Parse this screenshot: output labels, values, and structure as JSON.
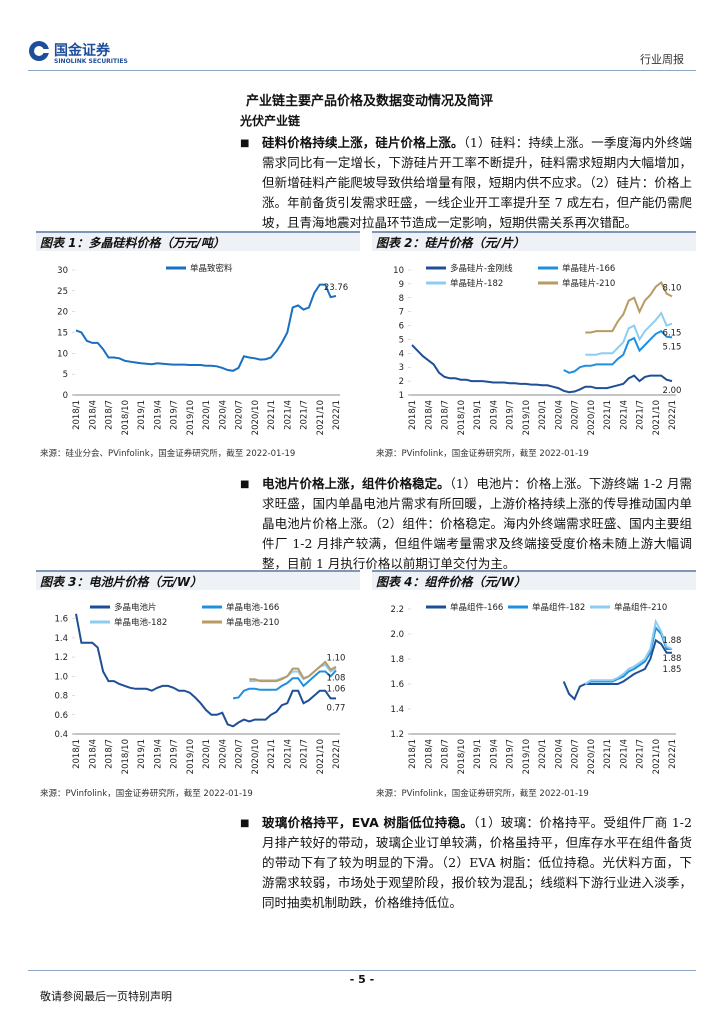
{
  "header": {
    "company": "国金证券",
    "company_en": "SINOLINK SECURITIES",
    "report_type": "行业周报"
  },
  "section_title": "产业链主要产品价格及数据变动情况及简评",
  "subsection": "光伏产业链",
  "paragraphs": [
    {
      "lead": "硅料价格持续上涨，硅片价格上涨。",
      "body": "（1）硅料：持续上涨。一季度海内外终端需求同比有一定增长，下游硅片开工率不断提升，硅料需求短期内大幅增加，但新增硅料产能爬坡导致供给增量有限，短期内供不应求。（2）硅片：价格上涨。年前备货引发需求旺盛，一线企业开工率提升至 7 成左右，但产能仍需爬坡，且青海地震对拉晶环节造成一定影响，短期供需关系再次错配。"
    },
    {
      "lead": "电池片价格上涨，组件价格稳定。",
      "body": "（1）电池片：价格上涨。下游终端 1-2 月需求旺盛，国内单晶电池片需求有所回暖，上游价格持续上涨的传导推动国内单晶电池片价格上涨。（2）组件：价格稳定。海内外终端需求旺盛、国内主要组件厂 1-2 月排产较满，但组件端考量需求及终端接受度价格未随上游大幅调整，目前 1 月执行价格以前期订单交付为主。"
    },
    {
      "lead": "玻璃价格持平，EVA 树脂低位持稳。",
      "body": "（1）玻璃：价格持平。受组件厂商 1-2 月排产较好的带动，玻璃企业订单较满，价格虽持平，但库存水平在组件备货的带动下有了较为明显的下滑。（2）EVA 树脂：低位持稳。光伏料方面，下游需求较弱，市场处于观望阶段，报价较为混乱；线缆料下游行业进入淡季，同时抽卖机制助跌，价格维持低位。"
    }
  ],
  "chart_data": [
    {
      "type": "line",
      "title": "图表 1：多晶硅料价格（万元/吨）",
      "source": "来源：硅业分会、PVinfolink，国金证券研究所，截至 2022-01-19",
      "categories": [
        "2018/1",
        null,
        null,
        "2018/4",
        null,
        null,
        "2018/7",
        null,
        null,
        "2018/10",
        null,
        null,
        "2019/1",
        null,
        null,
        "2019/4",
        null,
        null,
        "2019/7",
        null,
        null,
        "2019/10",
        null,
        null,
        "2020/1",
        null,
        null,
        "2020/4",
        null,
        null,
        "2020/7",
        null,
        null,
        "2020/10",
        null,
        null,
        "2021/1",
        null,
        null,
        "2021/4",
        null,
        null,
        "2021/7",
        null,
        null,
        "2021/10",
        null,
        null,
        "2022/1"
      ],
      "ylim": [
        0,
        30
      ],
      "yticks": [
        0,
        5,
        10,
        15,
        20,
        25,
        30
      ],
      "grid": false,
      "series": [
        {
          "name": "单晶致密料",
          "color": "#1a6fc0",
          "end_label": "23.76",
          "values": [
            15.5,
            15,
            13,
            12.5,
            12.5,
            11,
            9,
            9,
            8.8,
            8.2,
            8,
            7.8,
            7.6,
            7.5,
            7.4,
            7.6,
            7.5,
            7.4,
            7.3,
            7.3,
            7.3,
            7.2,
            7.2,
            7.2,
            7.0,
            7.0,
            6.9,
            6.5,
            6.0,
            5.8,
            6.5,
            9.3,
            9.0,
            8.8,
            8.5,
            8.6,
            9.0,
            10.5,
            12.5,
            15,
            21,
            21.5,
            20.5,
            21,
            24.5,
            26.5,
            26.5,
            23.5,
            23.76
          ]
        }
      ]
    },
    {
      "type": "line",
      "title": "图表 2：硅片价格（元/片）",
      "source": "来源：PVinfolink，国金证券研究所，截至 2022-01-19",
      "categories": [
        "2018/1",
        null,
        null,
        "2018/4",
        null,
        null,
        "2018/7",
        null,
        null,
        "2018/10",
        null,
        null,
        "2019/1",
        null,
        null,
        "2019/4",
        null,
        null,
        "2019/7",
        null,
        null,
        "2019/10",
        null,
        null,
        "2020/1",
        null,
        null,
        "2020/4",
        null,
        null,
        "2020/7",
        null,
        null,
        "2020/10",
        null,
        null,
        "2021/1",
        null,
        null,
        "2021/4",
        null,
        null,
        "2021/7",
        null,
        null,
        "2021/10",
        null,
        null,
        "2022/1"
      ],
      "ylim": [
        1,
        10
      ],
      "yticks": [
        1,
        2,
        3,
        4,
        5,
        6,
        7,
        8,
        9,
        10
      ],
      "grid": false,
      "series": [
        {
          "name": "多晶硅片-金刚线",
          "color": "#1f4f96",
          "end_label": "2.00",
          "values": [
            4.6,
            4.2,
            3.8,
            3.5,
            3.2,
            2.6,
            2.3,
            2.2,
            2.2,
            2.1,
            2.1,
            2.0,
            2.0,
            2.0,
            1.95,
            1.9,
            1.9,
            1.9,
            1.85,
            1.85,
            1.8,
            1.8,
            1.75,
            1.75,
            1.7,
            1.7,
            1.6,
            1.5,
            1.3,
            1.2,
            1.25,
            1.4,
            1.6,
            1.6,
            1.5,
            1.5,
            1.5,
            1.6,
            1.7,
            1.8,
            2.2,
            2.4,
            2.0,
            2.3,
            2.4,
            2.4,
            2.4,
            2.1,
            2.0
          ]
        },
        {
          "name": "单晶硅片-166",
          "color": "#1e90e0",
          "end_label": "5.15",
          "values": [
            null,
            null,
            null,
            null,
            null,
            null,
            null,
            null,
            null,
            null,
            null,
            null,
            null,
            null,
            null,
            null,
            null,
            null,
            null,
            null,
            null,
            null,
            null,
            null,
            null,
            null,
            null,
            null,
            2.8,
            2.6,
            2.7,
            3.0,
            3.1,
            3.1,
            3.2,
            3.2,
            3.2,
            3.2,
            3.6,
            3.9,
            4.9,
            5.1,
            4.2,
            4.6,
            5.0,
            5.4,
            5.6,
            5.2,
            5.15
          ]
        },
        {
          "name": "单晶硅片-182",
          "color": "#8ecdf2",
          "end_label": "6.15",
          "values": [
            null,
            null,
            null,
            null,
            null,
            null,
            null,
            null,
            null,
            null,
            null,
            null,
            null,
            null,
            null,
            null,
            null,
            null,
            null,
            null,
            null,
            null,
            null,
            null,
            null,
            null,
            null,
            null,
            null,
            null,
            null,
            null,
            3.9,
            3.9,
            3.9,
            4.0,
            4.0,
            4.0,
            4.4,
            4.8,
            5.8,
            6.0,
            5.0,
            5.6,
            6.0,
            6.4,
            6.9,
            6.0,
            6.15
          ]
        },
        {
          "name": "单晶硅片-210",
          "color": "#b89b62",
          "end_label": "8.10",
          "values": [
            null,
            null,
            null,
            null,
            null,
            null,
            null,
            null,
            null,
            null,
            null,
            null,
            null,
            null,
            null,
            null,
            null,
            null,
            null,
            null,
            null,
            null,
            null,
            null,
            null,
            null,
            null,
            null,
            null,
            null,
            null,
            null,
            5.5,
            5.5,
            5.6,
            5.6,
            5.6,
            5.6,
            6.3,
            6.8,
            7.8,
            8.0,
            7.0,
            7.8,
            8.2,
            8.8,
            9.1,
            8.3,
            8.1
          ]
        }
      ]
    },
    {
      "type": "line",
      "title": "图表 3：电池片价格（元/W）",
      "source": "来源：PVinfolink，国金证券研究所，截至 2022-01-19",
      "categories": [
        "2018/1",
        null,
        null,
        "2018/4",
        null,
        null,
        "2018/7",
        null,
        null,
        "2018/10",
        null,
        null,
        "2019/1",
        null,
        null,
        "2019/4",
        null,
        null,
        "2019/7",
        null,
        null,
        "2019/10",
        null,
        null,
        "2020/1",
        null,
        null,
        "2020/4",
        null,
        null,
        "2020/7",
        null,
        null,
        "2020/10",
        null,
        null,
        "2021/1",
        null,
        null,
        "2021/4",
        null,
        null,
        "2021/7",
        null,
        null,
        "2021/10",
        null,
        null,
        "2022/1"
      ],
      "ylim": [
        0.4,
        1.7
      ],
      "yticks": [
        0.4,
        0.6,
        0.8,
        {
          "value": 1,
          "label": "1.0"
        },
        1.2,
        1.4,
        1.6
      ],
      "grid": false,
      "series": [
        {
          "name": "多晶电池片",
          "color": "#1f4f96",
          "end_label": "0.77",
          "values": [
            1.65,
            1.35,
            1.35,
            1.35,
            1.3,
            1.05,
            0.95,
            0.95,
            0.92,
            0.9,
            0.88,
            0.87,
            0.87,
            0.87,
            0.85,
            0.88,
            0.9,
            0.9,
            0.88,
            0.85,
            0.85,
            0.83,
            0.78,
            0.72,
            0.65,
            0.6,
            0.6,
            0.62,
            0.5,
            0.48,
            0.52,
            0.55,
            0.53,
            0.55,
            0.55,
            0.55,
            0.6,
            0.63,
            0.7,
            0.72,
            0.85,
            0.85,
            0.72,
            0.75,
            0.8,
            0.85,
            0.85,
            0.77,
            0.77
          ]
        },
        {
          "name": "单晶电池-166",
          "color": "#1e90e0",
          "end_label": "1.06",
          "values": [
            null,
            null,
            null,
            null,
            null,
            null,
            null,
            null,
            null,
            null,
            null,
            null,
            null,
            null,
            null,
            null,
            null,
            null,
            null,
            null,
            null,
            null,
            null,
            null,
            null,
            null,
            null,
            null,
            null,
            0.77,
            0.78,
            0.85,
            0.87,
            0.87,
            0.86,
            0.86,
            0.86,
            0.86,
            0.9,
            0.93,
            0.98,
            0.98,
            0.9,
            0.95,
            1.0,
            1.05,
            1.05,
            1.0,
            1.06
          ]
        },
        {
          "name": "单晶电池-182",
          "color": "#8ecdf2",
          "end_label": "1.08",
          "values": [
            null,
            null,
            null,
            null,
            null,
            null,
            null,
            null,
            null,
            null,
            null,
            null,
            null,
            null,
            null,
            null,
            null,
            null,
            null,
            null,
            null,
            null,
            null,
            null,
            null,
            null,
            null,
            null,
            null,
            null,
            null,
            null,
            0.95,
            0.95,
            0.96,
            0.96,
            0.96,
            0.96,
            0.98,
            1.0,
            1.05,
            1.05,
            0.97,
            1.0,
            1.05,
            1.1,
            1.12,
            1.05,
            1.08
          ]
        },
        {
          "name": "单晶电池-210",
          "color": "#b89b62",
          "end_label": "1.10",
          "values": [
            null,
            null,
            null,
            null,
            null,
            null,
            null,
            null,
            null,
            null,
            null,
            null,
            null,
            null,
            null,
            null,
            null,
            null,
            null,
            null,
            null,
            null,
            null,
            null,
            null,
            null,
            null,
            null,
            null,
            null,
            null,
            null,
            0.97,
            0.97,
            0.95,
            0.95,
            0.95,
            0.95,
            0.97,
            1.0,
            1.08,
            1.08,
            0.98,
            1.0,
            1.05,
            1.1,
            1.15,
            1.07,
            1.1
          ]
        }
      ]
    },
    {
      "type": "line",
      "title": "图表 4：组件价格（元/W）",
      "source": "来源：PVinfolink，国金证券研究所，截至 2022-01-19",
      "categories": [
        "2018/1",
        null,
        null,
        "2018/4",
        null,
        null,
        "2018/7",
        null,
        null,
        "2018/10",
        null,
        null,
        "2019/1",
        null,
        null,
        "2019/4",
        null,
        null,
        "2019/7",
        null,
        null,
        "2019/10",
        null,
        null,
        "2020/1",
        null,
        null,
        "2020/4",
        null,
        null,
        "2020/7",
        null,
        null,
        "2020/10",
        null,
        null,
        "2021/1",
        null,
        null,
        "2021/4",
        null,
        null,
        "2021/7",
        null,
        null,
        "2021/10",
        null,
        null,
        "2022/1"
      ],
      "ylim": [
        1.2,
        2.2
      ],
      "yticks": [
        1.2,
        1.4,
        1.6,
        1.8,
        {
          "value": 2,
          "label": "2.0"
        },
        2.2
      ],
      "grid": false,
      "series": [
        {
          "name": "单晶组件-166",
          "color": "#1f4f96",
          "end_label": "1.85",
          "values": [
            null,
            null,
            null,
            null,
            null,
            null,
            null,
            null,
            null,
            null,
            null,
            null,
            null,
            null,
            null,
            null,
            null,
            null,
            null,
            null,
            null,
            null,
            null,
            null,
            null,
            null,
            null,
            null,
            1.62,
            1.52,
            1.48,
            1.58,
            1.6,
            1.6,
            1.6,
            1.6,
            1.6,
            1.6,
            1.6,
            1.62,
            1.65,
            1.68,
            1.7,
            1.72,
            1.8,
            1.95,
            1.92,
            1.85,
            1.85
          ]
        },
        {
          "name": "单晶组件-182",
          "color": "#1e90e0",
          "end_label": "1.88",
          "values": [
            null,
            null,
            null,
            null,
            null,
            null,
            null,
            null,
            null,
            null,
            null,
            null,
            null,
            null,
            null,
            null,
            null,
            null,
            null,
            null,
            null,
            null,
            null,
            null,
            null,
            null,
            null,
            null,
            null,
            null,
            null,
            null,
            1.6,
            1.62,
            1.62,
            1.62,
            1.62,
            1.62,
            1.64,
            1.66,
            1.7,
            1.72,
            1.75,
            1.78,
            1.85,
            2.05,
            2.0,
            1.88,
            1.88
          ]
        },
        {
          "name": "单晶组件-210",
          "color": "#8ecdf2",
          "end_label": "1.88",
          "values": [
            null,
            null,
            null,
            null,
            null,
            null,
            null,
            null,
            null,
            null,
            null,
            null,
            null,
            null,
            null,
            null,
            null,
            null,
            null,
            null,
            null,
            null,
            null,
            null,
            null,
            null,
            null,
            null,
            null,
            null,
            null,
            null,
            1.6,
            1.63,
            1.63,
            1.63,
            1.63,
            1.63,
            1.65,
            1.68,
            1.72,
            1.74,
            1.77,
            1.8,
            1.88,
            2.1,
            2.02,
            1.9,
            1.88
          ]
        }
      ]
    }
  ],
  "footer": {
    "page": "- 5 -",
    "disclaimer": "敬请参阅最后一页特别声明"
  }
}
